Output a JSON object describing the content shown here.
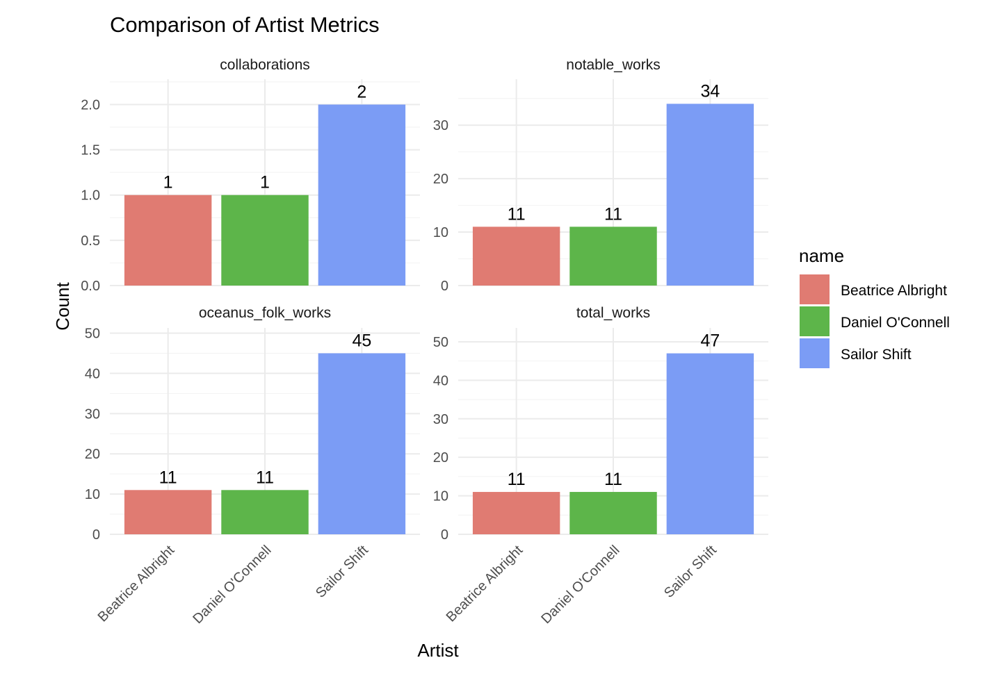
{
  "chart_data": {
    "type": "bar",
    "title": "Comparison of Artist Metrics",
    "xlabel": "Artist",
    "ylabel": "Count",
    "categories": [
      "Beatrice Albright",
      "Daniel O'Connell",
      "Sailor Shift"
    ],
    "legend": {
      "title": "name",
      "position": "right",
      "entries": [
        {
          "name": "Beatrice Albright",
          "color": "#E07B72"
        },
        {
          "name": "Daniel O'Connell",
          "color": "#5DB54A"
        },
        {
          "name": "Sailor Shift",
          "color": "#7B9CF5"
        }
      ]
    },
    "grid": true,
    "facets": [
      {
        "name": "collaborations",
        "values": [
          1,
          1,
          2
        ],
        "labels": [
          "1",
          "1",
          "2"
        ],
        "ylim": [
          0,
          2.28
        ],
        "yticks": [
          0,
          0.5,
          1,
          1.5,
          2
        ],
        "ytick_labels": [
          "0.0",
          "0.5",
          "1.0",
          "1.5",
          "2.0"
        ]
      },
      {
        "name": "notable_works",
        "values": [
          11,
          11,
          34
        ],
        "labels": [
          "11",
          "11",
          "34"
        ],
        "ylim": [
          0,
          38.6
        ],
        "yticks": [
          0,
          10,
          20,
          30
        ],
        "ytick_labels": [
          "0",
          "10",
          "20",
          "30"
        ]
      },
      {
        "name": "oceanus_folk_works",
        "values": [
          11,
          11,
          45
        ],
        "labels": [
          "11",
          "11",
          "45"
        ],
        "ylim": [
          0,
          51.3
        ],
        "yticks": [
          0,
          10,
          20,
          30,
          40,
          50
        ],
        "ytick_labels": [
          "0",
          "10",
          "20",
          "30",
          "40",
          "50"
        ]
      },
      {
        "name": "total_works",
        "values": [
          11,
          11,
          47
        ],
        "labels": [
          "11",
          "11",
          "47"
        ],
        "ylim": [
          0,
          53.6
        ],
        "yticks": [
          0,
          10,
          20,
          30,
          40,
          50
        ],
        "ytick_labels": [
          "0",
          "10",
          "20",
          "30",
          "40",
          "50"
        ]
      }
    ]
  }
}
